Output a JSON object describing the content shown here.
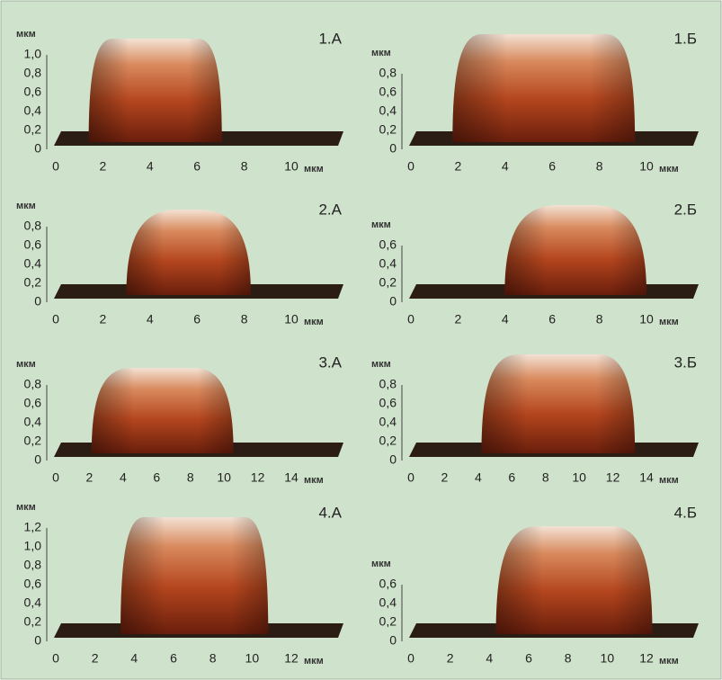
{
  "panels": [
    {
      "label": "1.А",
      "y_unit": "мкм",
      "y_ticks": [
        "1,0",
        "0,8",
        "0,6",
        "0,4",
        "0,2",
        "0"
      ],
      "x_ticks": [
        "0",
        "2",
        "4",
        "6",
        "8",
        "10"
      ],
      "x_unit": "мкм"
    },
    {
      "label": "1.Б",
      "y_unit": "мкм",
      "y_ticks": [
        "0,8",
        "0,6",
        "0,4",
        "0,2",
        "0"
      ],
      "x_ticks": [
        "0",
        "2",
        "4",
        "6",
        "8",
        "10"
      ],
      "x_unit": "мкм"
    },
    {
      "label": "2.А",
      "y_unit": "мкм",
      "y_ticks": [
        "0,8",
        "0,6",
        "0,4",
        "0,2",
        "0"
      ],
      "x_ticks": [
        "0",
        "2",
        "4",
        "6",
        "8",
        "10"
      ],
      "x_unit": "мкм"
    },
    {
      "label": "2.Б",
      "y_unit": "мкм",
      "y_ticks": [
        "0,6",
        "0,4",
        "0,2",
        "0"
      ],
      "x_ticks": [
        "0",
        "2",
        "4",
        "6",
        "8",
        "10"
      ],
      "x_unit": "мкм"
    },
    {
      "label": "3.А",
      "y_unit": "мкм",
      "y_ticks": [
        "0,8",
        "0,6",
        "0,4",
        "0,2",
        "0"
      ],
      "x_ticks": [
        "0",
        "2",
        "4",
        "6",
        "8",
        "10",
        "12",
        "14"
      ],
      "x_unit": "мкм"
    },
    {
      "label": "3.Б",
      "y_unit": "мкм",
      "y_ticks": [
        "0,8",
        "0,6",
        "0,4",
        "0,2",
        "0"
      ],
      "x_ticks": [
        "0",
        "2",
        "4",
        "6",
        "8",
        "10",
        "12",
        "14"
      ],
      "x_unit": "мкм"
    },
    {
      "label": "4.А",
      "y_unit": "мкм",
      "y_ticks": [
        "1,2",
        "1,0",
        "0,8",
        "0,6",
        "0,4",
        "0,2",
        "0"
      ],
      "x_ticks": [
        "0",
        "2",
        "4",
        "6",
        "8",
        "10",
        "12"
      ],
      "x_unit": "мкм"
    },
    {
      "label": "4.Б",
      "y_unit": "мкм",
      "y_ticks": [
        "0,6",
        "0,4",
        "0,2",
        "0"
      ],
      "x_ticks": [
        "0",
        "2",
        "4",
        "6",
        "8",
        "10",
        "12"
      ],
      "x_unit": "мкм"
    }
  ]
}
